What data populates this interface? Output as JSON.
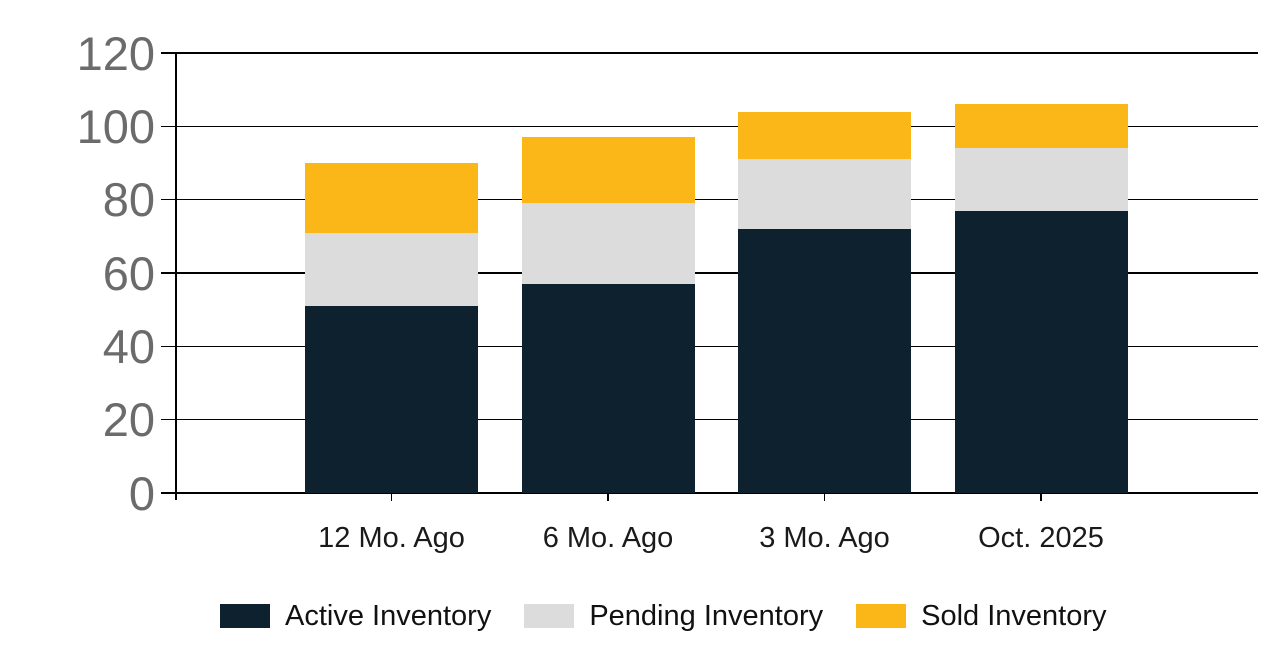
{
  "chart_data": {
    "type": "bar",
    "stacked": true,
    "title": "",
    "xlabel": "",
    "ylabel": "",
    "categories": [
      "12 Mo. Ago",
      "6 Mo. Ago",
      "3 Mo. Ago",
      "Oct. 2025"
    ],
    "series": [
      {
        "name": "Active Inventory",
        "color": "#0e212e",
        "values": [
          51,
          57,
          72,
          77
        ]
      },
      {
        "name": "Pending Inventory",
        "color": "#dcdcdc",
        "values": [
          20,
          22,
          19,
          17
        ]
      },
      {
        "name": "Sold Inventory",
        "color": "#fbb717",
        "values": [
          19,
          18,
          13,
          12
        ]
      }
    ],
    "stack_totals": [
      90,
      97,
      104,
      106
    ],
    "ylim": [
      0,
      120
    ],
    "yticks": [
      0,
      20,
      40,
      60,
      80,
      100,
      120
    ],
    "grid": "horizontal",
    "legend_position": "bottom",
    "colors": {
      "background": "#ffffff",
      "axis_line": "#000000",
      "gridline": "#000000",
      "y_tick_label": "#6b6b6b",
      "x_tick_label": "#1a1a1a",
      "legend_label": "#111111"
    }
  }
}
